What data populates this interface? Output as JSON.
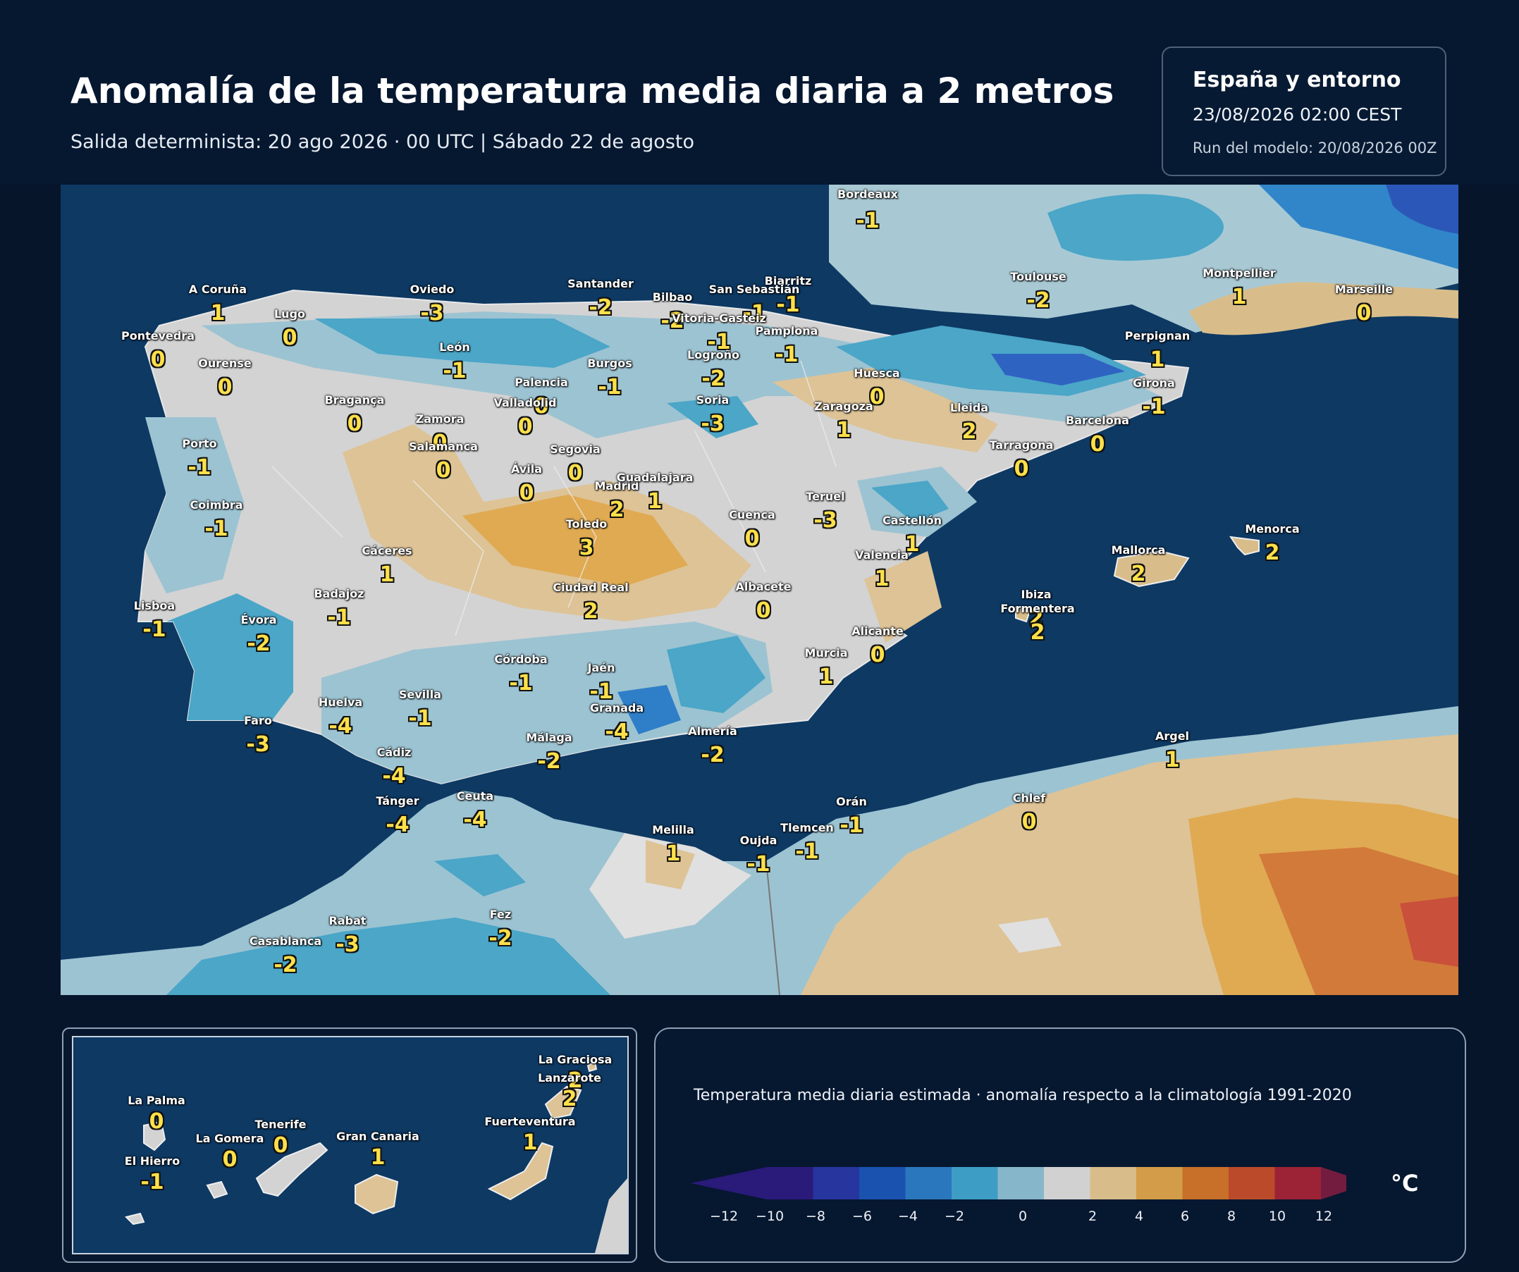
{
  "header": {
    "title": "Anomalía de la temperatura media diaria a 2 metros",
    "subtitle": "Salida determinista: 20 ago 2026 · 00 UTC  |  Sábado 22 de agosto"
  },
  "info": {
    "region": "España y entorno",
    "valid_time": "23/08/2026  02:00 CEST",
    "run": "Run del modelo: 20/08/2026 00Z"
  },
  "map_labels": [
    {
      "name": "Bordeaux",
      "value": "-1"
    },
    {
      "name": "Biarritz",
      "value": "-1"
    },
    {
      "name": "San Sebastián",
      "value": "-1"
    },
    {
      "name": "Toulouse",
      "value": "-2"
    },
    {
      "name": "Montpellier",
      "value": "1"
    },
    {
      "name": "Marseille",
      "value": "0"
    },
    {
      "name": "Perpignan",
      "value": "1"
    },
    {
      "name": "A Coruña",
      "value": "1"
    },
    {
      "name": "Lugo",
      "value": "0"
    },
    {
      "name": "Oviedo",
      "value": "-3"
    },
    {
      "name": "Santander",
      "value": "-2"
    },
    {
      "name": "Bilbao",
      "value": "-2"
    },
    {
      "name": "Vitoria-Gasteiz",
      "value": "-1"
    },
    {
      "name": "Pamplona",
      "value": "-1"
    },
    {
      "name": "Pontevedra",
      "value": "0"
    },
    {
      "name": "Ourense",
      "value": "0"
    },
    {
      "name": "León",
      "value": "-1"
    },
    {
      "name": "Burgos",
      "value": "-1"
    },
    {
      "name": "Logroño",
      "value": "-2"
    },
    {
      "name": "Huesca",
      "value": "0"
    },
    {
      "name": "Girona",
      "value": "-1"
    },
    {
      "name": "Palencia",
      "value": "0"
    },
    {
      "name": "Bragança",
      "value": "0"
    },
    {
      "name": "Valladolid",
      "value": "0"
    },
    {
      "name": "Soria",
      "value": "-3"
    },
    {
      "name": "Zaragoza",
      "value": "1"
    },
    {
      "name": "Lleida",
      "value": "2"
    },
    {
      "name": "Barcelona",
      "value": "0"
    },
    {
      "name": "Zamora",
      "value": "0"
    },
    {
      "name": "Tarragona",
      "value": "0"
    },
    {
      "name": "Porto",
      "value": "-1"
    },
    {
      "name": "Salamanca",
      "value": "0"
    },
    {
      "name": "Segovia",
      "value": "0"
    },
    {
      "name": "Ávila",
      "value": "0"
    },
    {
      "name": "Madrid",
      "value": "2"
    },
    {
      "name": "Guadalajara",
      "value": "1"
    },
    {
      "name": "Teruel",
      "value": "-3"
    },
    {
      "name": "Coimbra",
      "value": "-1"
    },
    {
      "name": "Cuenca",
      "value": "0"
    },
    {
      "name": "Toledo",
      "value": "3"
    },
    {
      "name": "Castellón",
      "value": "1"
    },
    {
      "name": "Valencia",
      "value": "1"
    },
    {
      "name": "Cáceres",
      "value": "1"
    },
    {
      "name": "Mallorca",
      "value": "2"
    },
    {
      "name": "Menorca",
      "value": "2"
    },
    {
      "name": "Badajoz",
      "value": "-1"
    },
    {
      "name": "Ciudad Real",
      "value": "2"
    },
    {
      "name": "Albacete",
      "value": "0"
    },
    {
      "name": "Ibiza",
      "value": "2"
    },
    {
      "name": "Formentera",
      "value": "2"
    },
    {
      "name": "Lisboa",
      "value": "-1"
    },
    {
      "name": "Évora",
      "value": "-2"
    },
    {
      "name": "Alicante",
      "value": "0"
    },
    {
      "name": "Murcia",
      "value": "1"
    },
    {
      "name": "Córdoba",
      "value": "-1"
    },
    {
      "name": "Jaén",
      "value": "-1"
    },
    {
      "name": "Huelva",
      "value": "-4"
    },
    {
      "name": "Sevilla",
      "value": "-1"
    },
    {
      "name": "Granada",
      "value": "-4"
    },
    {
      "name": "Faro",
      "value": "-3"
    },
    {
      "name": "Almería",
      "value": "-2"
    },
    {
      "name": "Málaga",
      "value": "-2"
    },
    {
      "name": "Cádiz",
      "value": "-4"
    },
    {
      "name": "Argel",
      "value": "1"
    },
    {
      "name": "Tánger",
      "value": "-4"
    },
    {
      "name": "Ceuta",
      "value": "-4"
    },
    {
      "name": "Chlef",
      "value": "0"
    },
    {
      "name": "Orán",
      "value": "-1"
    },
    {
      "name": "Melilla",
      "value": "1"
    },
    {
      "name": "Tlemcen",
      "value": "-1"
    },
    {
      "name": "Oujda",
      "value": "-1"
    },
    {
      "name": "Fez",
      "value": "-2"
    },
    {
      "name": "Rabat",
      "value": "-3"
    },
    {
      "name": "Casablanca",
      "value": "-2"
    }
  ],
  "canarias": [
    {
      "name": "La Graciosa",
      "value": "2"
    },
    {
      "name": "Lanzarote",
      "value": "2"
    },
    {
      "name": "La Palma",
      "value": "0"
    },
    {
      "name": "Fuerteventura",
      "value": "1"
    },
    {
      "name": "Tenerife",
      "value": "0"
    },
    {
      "name": "La Gomera",
      "value": "0"
    },
    {
      "name": "Gran Canaria",
      "value": "1"
    },
    {
      "name": "El Hierro",
      "value": "-1"
    }
  ],
  "legend": {
    "description": "Temperatura media diaria estimada · anomalía respecto a la climatología 1991-2020",
    "unit": "°C",
    "ticks": [
      "−12",
      "−10",
      "−8",
      "−6",
      "−4",
      "−2",
      "0",
      "2",
      "4",
      "6",
      "8",
      "10",
      "12"
    ],
    "colors": [
      "#2a1a7a",
      "#27359e",
      "#1a52b0",
      "#2a77bd",
      "#3e9dc4",
      "#86b6c9",
      "#d1d1d1",
      "#d8bd8b",
      "#d29c48",
      "#c86f2a",
      "#bb4a2a",
      "#9c2236",
      "#741c3f"
    ]
  }
}
